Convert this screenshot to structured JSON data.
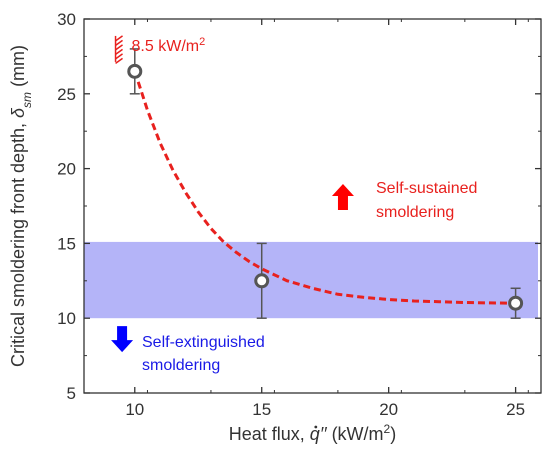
{
  "chart_data": {
    "type": "scatter",
    "xlabel": {
      "prefix": "Heat flux, ",
      "symbol": "q",
      "primes": "′′",
      "unit_open": " (kW/m",
      "unit_exp": "2",
      "unit_close": ")"
    },
    "ylabel": {
      "text": "Critical smoldering front depth, ",
      "symbol": "δ",
      "subscript": "sm",
      "unit": "  (mm)"
    },
    "xlim": [
      8,
      26
    ],
    "ylim": [
      5,
      30
    ],
    "x_ticks": [
      10,
      15,
      20,
      25
    ],
    "y_ticks": [
      5,
      10,
      15,
      20,
      25,
      30
    ],
    "grid": false,
    "series": [
      {
        "x": [
          10,
          15,
          25
        ],
        "y": [
          26.5,
          12.5,
          11.0
        ],
        "error": [
          1.5,
          2.5,
          1.0
        ],
        "marker_color": "#555555",
        "error_color": "#555555"
      }
    ],
    "fit_curve": {
      "type": "exponential",
      "color": "#e8211e",
      "x": [
        10.0,
        10.5,
        11.0,
        11.5,
        12.0,
        12.5,
        13.0,
        13.5,
        14.0,
        14.5,
        15.0,
        16.0,
        17.0,
        18.0,
        19.0,
        20.0,
        21.0,
        22.0,
        23.0,
        24.0,
        25.0
      ],
      "y": [
        26.5,
        23.9,
        21.7,
        19.9,
        18.4,
        17.1,
        16.0,
        15.1,
        14.4,
        13.8,
        13.3,
        12.5,
        12.0,
        11.6,
        11.4,
        11.25,
        11.15,
        11.1,
        11.05,
        11.02,
        11.0
      ]
    },
    "band": {
      "y_range": [
        10,
        15.1
      ],
      "color": "#b4b4f8"
    },
    "annotations": {
      "threshold": {
        "value": "8.5",
        "unit": " kW/m",
        "exp": "2",
        "x": 9.4,
        "y": 28,
        "color": "#e8211e"
      },
      "sustained": {
        "lines": [
          "Self-sustained",
          "smoldering"
        ],
        "color": "#e8211e",
        "arrow_x": 18.2,
        "arrow_y": 18.1,
        "direction": "up"
      },
      "extinguished": {
        "lines": [
          "Self-extinguished",
          "smoldering"
        ],
        "color": "#1a1ae6",
        "arrow_x": 9.5,
        "arrow_y": 8.6,
        "direction": "down"
      }
    }
  }
}
